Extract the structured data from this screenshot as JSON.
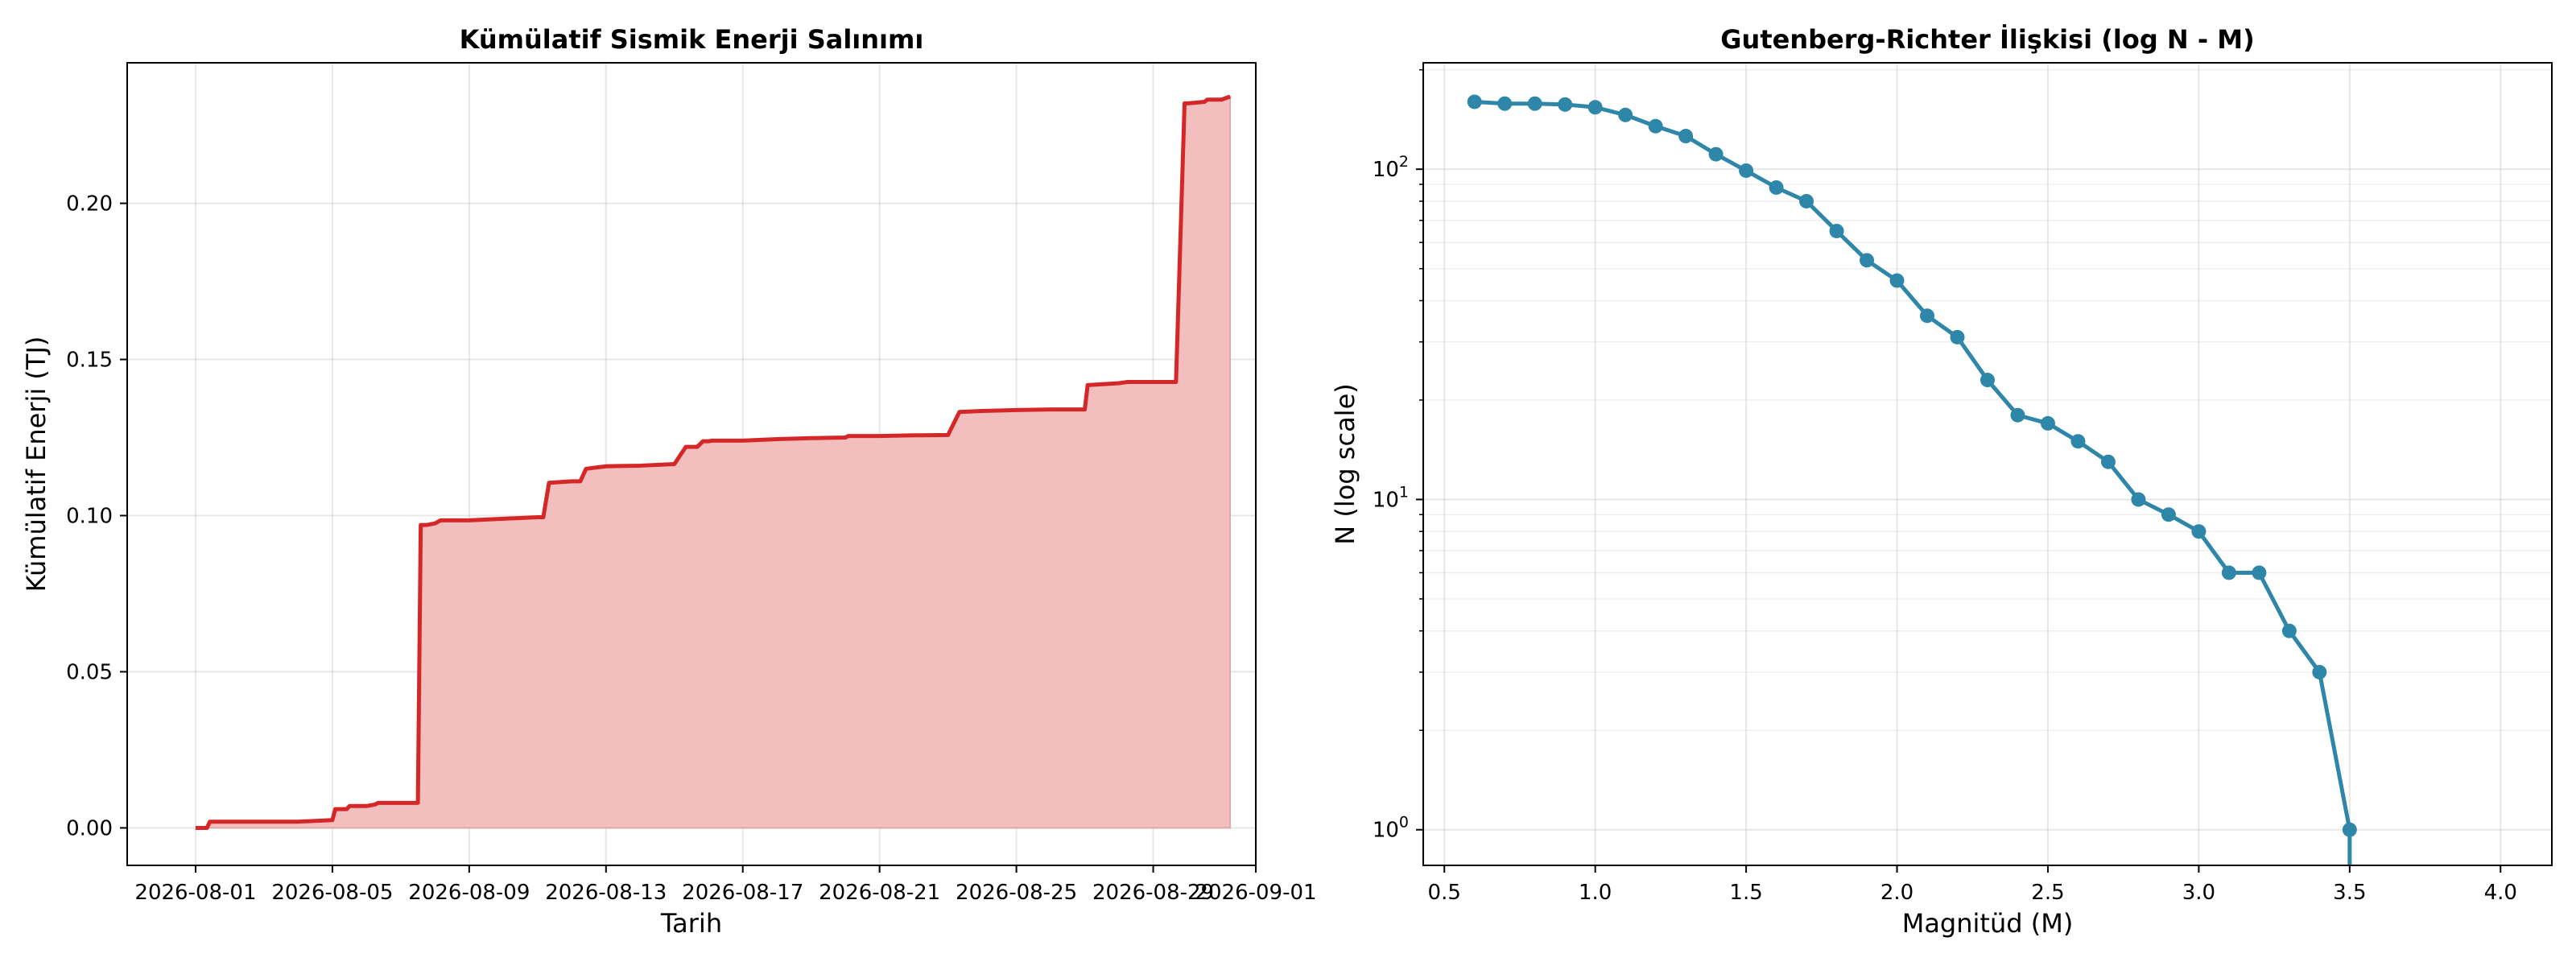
{
  "chart_data": [
    {
      "type": "area",
      "title": "Kümülatif Sismik Enerji Salınımı",
      "xlabel": "Tarih",
      "ylabel": "Kümülatif Enerji (TJ)",
      "xlim": [
        "2026-07-30",
        "2026-09-01"
      ],
      "ylim": [
        -0.012,
        0.245
      ],
      "xticks": [
        "2026-08-01",
        "2026-08-05",
        "2026-08-09",
        "2026-08-13",
        "2026-08-17",
        "2026-08-21",
        "2026-08-25",
        "2026-08-29",
        "2026-09-01"
      ],
      "yticks": [
        "0.00",
        "0.05",
        "0.10",
        "0.15",
        "0.20"
      ],
      "grid": true,
      "line_color": "#d62728",
      "fill_color": "#f2bebe",
      "series": [
        {
          "x": [
            "2026-08-01",
            "2026-08-01 08:00",
            "2026-08-01 10:00",
            "2026-08-02",
            "2026-08-03",
            "2026-08-04",
            "2026-08-05",
            "2026-08-05 02:00",
            "2026-08-05 10:00",
            "2026-08-05 12:00",
            "2026-08-06",
            "2026-08-06 06:00",
            "2026-08-06 08:00",
            "2026-08-07",
            "2026-08-07 12:00",
            "2026-08-07 14:00",
            "2026-08-07 18:00",
            "2026-08-08",
            "2026-08-08 04:00",
            "2026-08-08 08:00",
            "2026-08-09",
            "2026-08-10",
            "2026-08-11",
            "2026-08-11 04:00",
            "2026-08-11 08:00",
            "2026-08-12",
            "2026-08-12 06:00",
            "2026-08-12 10:00",
            "2026-08-13",
            "2026-08-14",
            "2026-08-15",
            "2026-08-15 08:00",
            "2026-08-15 16:00",
            "2026-08-15 20:00",
            "2026-08-16",
            "2026-08-16 02:00",
            "2026-08-17",
            "2026-08-18",
            "2026-08-19",
            "2026-08-20",
            "2026-08-20 02:00",
            "2026-08-21",
            "2026-08-22",
            "2026-08-23",
            "2026-08-23 08:00",
            "2026-08-24",
            "2026-08-25",
            "2026-08-26",
            "2026-08-27",
            "2026-08-27 02:00",
            "2026-08-28",
            "2026-08-28 06:00",
            "2026-08-29",
            "2026-08-29 16:00",
            "2026-08-29 22:00",
            "2026-08-30",
            "2026-08-30 12:00",
            "2026-08-30 14:00",
            "2026-08-31",
            "2026-08-31 06:00"
          ],
          "y": [
            0.0,
            0.0,
            0.002,
            0.002,
            0.002,
            0.002,
            0.0025,
            0.006,
            0.006,
            0.007,
            0.007,
            0.0075,
            0.008,
            0.008,
            0.008,
            0.097,
            0.097,
            0.0975,
            0.0985,
            0.0985,
            0.0985,
            0.099,
            0.0995,
            0.0995,
            0.1105,
            0.111,
            0.111,
            0.115,
            0.1158,
            0.116,
            0.1165,
            0.122,
            0.122,
            0.1238,
            0.1238,
            0.124,
            0.124,
            0.1245,
            0.1248,
            0.125,
            0.1255,
            0.1255,
            0.1257,
            0.1258,
            0.1332,
            0.1335,
            0.1338,
            0.134,
            0.134,
            0.1418,
            0.1424,
            0.1428,
            0.1428,
            0.1428,
            0.232,
            0.232,
            0.2325,
            0.2332,
            0.2332,
            0.2342
          ]
        }
      ]
    },
    {
      "type": "line",
      "title": "Gutenberg-Richter İlişkisi (log N - M)",
      "xlabel": "Magnitüd (M)",
      "ylabel": "N (log scale)",
      "xlim": [
        0.43,
        4.17
      ],
      "ylim": [
        0.78,
        210
      ],
      "yscale": "log",
      "xticks": [
        "0.5",
        "1.0",
        "1.5",
        "2.0",
        "2.5",
        "3.0",
        "3.5",
        "4.0"
      ],
      "yticks": [
        "10^0",
        "10^1",
        "10^2"
      ],
      "grid": true,
      "line_color": "#2e86a8",
      "series": [
        {
          "x": [
            0.6,
            0.7,
            0.8,
            0.9,
            1.0,
            1.1,
            1.2,
            1.3,
            1.4,
            1.5,
            1.6,
            1.7,
            1.8,
            1.9,
            2.0,
            2.1,
            2.2,
            2.3,
            2.4,
            2.5,
            2.6,
            2.7,
            2.8,
            2.9,
            3.0,
            3.1,
            3.2,
            3.3,
            3.4,
            3.5
          ],
          "y": [
            160,
            158,
            158,
            157,
            154,
            146,
            135,
            126,
            111,
            99,
            88,
            80,
            65,
            53,
            46,
            36,
            31,
            23,
            18,
            17,
            15,
            13,
            10,
            9,
            8,
            6,
            6,
            4,
            3,
            1
          ]
        }
      ]
    }
  ]
}
